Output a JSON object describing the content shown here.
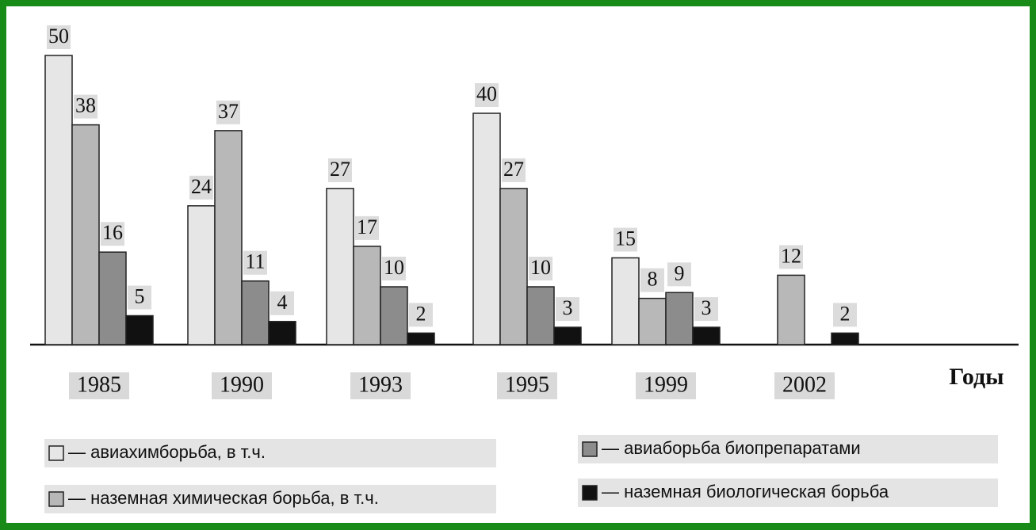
{
  "chart_data": {
    "type": "bar",
    "x_label": "Годы",
    "categories": [
      "1985",
      "1990",
      "1993",
      "1995",
      "1999",
      "2002"
    ],
    "series": [
      {
        "name": "— авиахимборьба, в т.ч.",
        "color": "#e6e6e6",
        "values": [
          50,
          24,
          27,
          40,
          15,
          null
        ]
      },
      {
        "name": "— наземная химическая борьба, в т.ч.",
        "color": "#b8b8b8",
        "values": [
          38,
          37,
          17,
          27,
          8,
          12
        ]
      },
      {
        "name": "— авиаборьба биопрепаратами",
        "color": "#8c8c8c",
        "values": [
          16,
          11,
          10,
          10,
          9,
          null
        ]
      },
      {
        "name": "— наземная биологическая борьба",
        "color": "#111111",
        "values": [
          5,
          4,
          2,
          3,
          3,
          2
        ]
      }
    ]
  }
}
